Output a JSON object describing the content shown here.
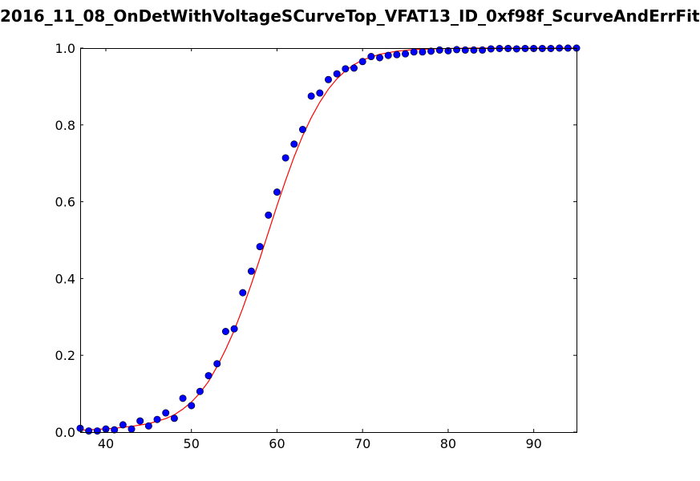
{
  "chart_data": {
    "type": "scatter",
    "title": "2016_11_08_OnDetWithVoltageSCurveTop_VFAT13_ID_0xf98f_ScurveAndErrFit",
    "xlabel": "",
    "ylabel": "",
    "xlim": [
      37,
      95
    ],
    "ylim": [
      0.0,
      1.0
    ],
    "xticks": [
      "40",
      "50",
      "60",
      "70",
      "80",
      "90"
    ],
    "yticks": [
      "0.0",
      "0.2",
      "0.4",
      "0.6",
      "0.8",
      "1.0"
    ],
    "grid": false,
    "legend": "none",
    "series": [
      {
        "kind": "points",
        "color": "#0000ff",
        "x": [
          37,
          38,
          39,
          40,
          41,
          42,
          43,
          44,
          45,
          46,
          47,
          48,
          49,
          50,
          51,
          52,
          53,
          54,
          55,
          56,
          57,
          58,
          59,
          60,
          61,
          62,
          63,
          64,
          65,
          66,
          67,
          68,
          69,
          70,
          71,
          72,
          73,
          74,
          75,
          76,
          77,
          78,
          79,
          80,
          81,
          82,
          83,
          84,
          85,
          86,
          87,
          88,
          89,
          90,
          91,
          92,
          93,
          94,
          95
        ],
        "y": [
          0.01,
          0.003,
          0.003,
          0.008,
          0.006,
          0.019,
          0.008,
          0.029,
          0.016,
          0.033,
          0.05,
          0.036,
          0.088,
          0.069,
          0.106,
          0.147,
          0.178,
          0.262,
          0.269,
          0.363,
          0.419,
          0.483,
          0.565,
          0.625,
          0.714,
          0.75,
          0.788,
          0.875,
          0.883,
          0.918,
          0.933,
          0.946,
          0.948,
          0.965,
          0.978,
          0.975,
          0.981,
          0.983,
          0.985,
          0.99,
          0.99,
          0.992,
          0.995,
          0.993,
          0.996,
          0.995,
          0.995,
          0.995,
          0.998,
          0.999,
          0.999,
          0.998,
          0.999,
          0.999,
          0.999,
          0.999,
          1.0,
          1.0,
          1.0
        ]
      },
      {
        "kind": "fit-curve",
        "color": "#ff0000",
        "x": [
          37,
          39,
          41,
          43,
          45,
          47,
          48,
          49,
          50,
          51,
          52,
          53,
          54,
          55,
          56,
          57,
          58,
          59,
          60,
          61,
          62,
          63,
          64,
          65,
          66,
          67,
          68,
          69,
          70,
          72,
          74,
          76,
          78,
          80,
          83,
          86,
          90,
          95
        ],
        "y": [
          0.005,
          0.007,
          0.01,
          0.015,
          0.022,
          0.035,
          0.045,
          0.06,
          0.078,
          0.102,
          0.132,
          0.171,
          0.215,
          0.265,
          0.323,
          0.385,
          0.452,
          0.521,
          0.59,
          0.655,
          0.717,
          0.772,
          0.819,
          0.859,
          0.893,
          0.92,
          0.941,
          0.957,
          0.969,
          0.984,
          0.992,
          0.996,
          0.998,
          0.999,
          1.0,
          1.0,
          1.0,
          1.0
        ]
      }
    ],
    "colors": {
      "axes": "#000000",
      "background": "#ffffff",
      "points": "#0000ff",
      "curve": "#ff0000"
    }
  }
}
